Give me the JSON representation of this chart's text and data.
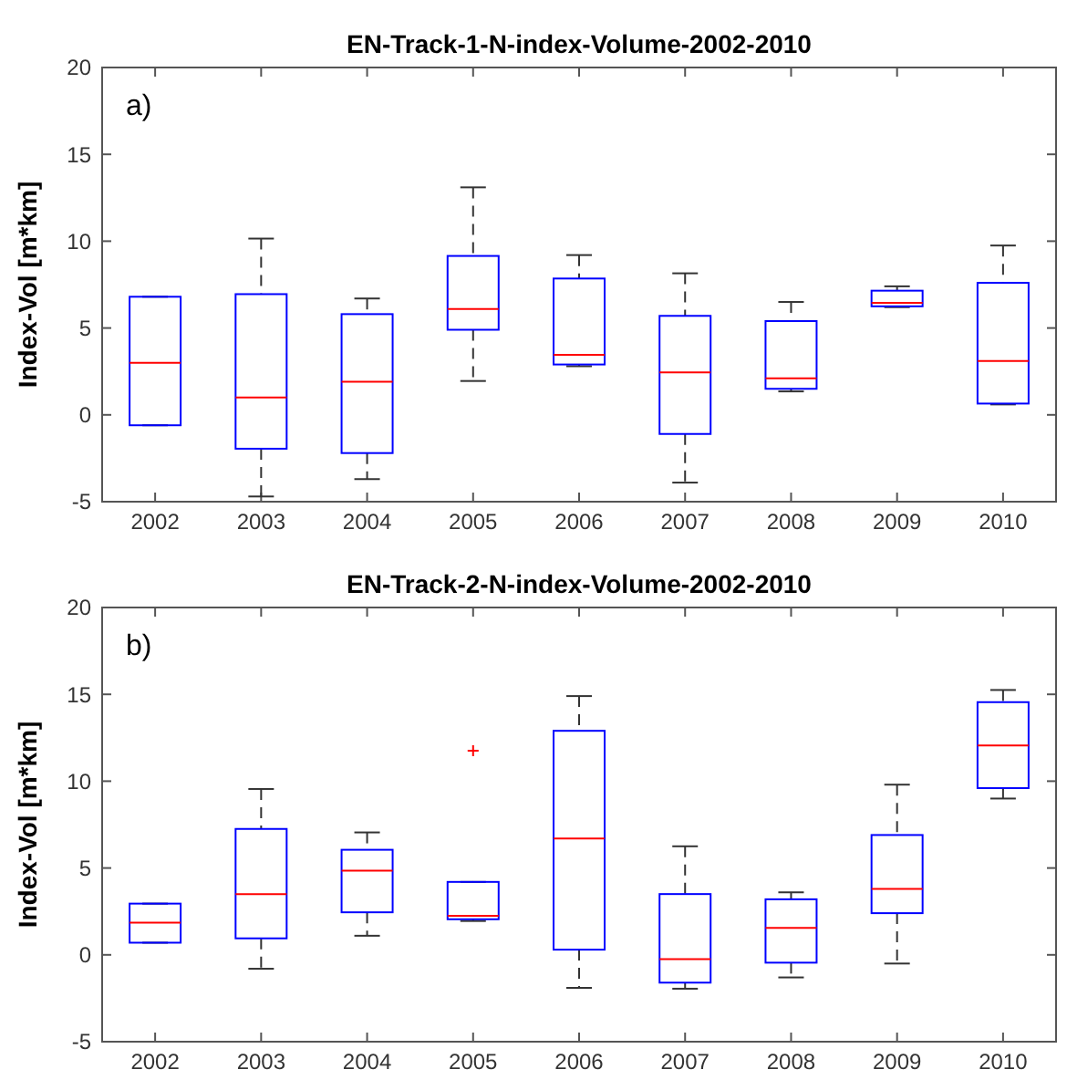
{
  "chart_data": [
    {
      "type": "box",
      "title": "EN-Track-1-N-index-Volume-2002-2010",
      "ylabel": "Index-Vol [m*km]",
      "annotations": [
        "a)"
      ],
      "categories": [
        "2002",
        "2003",
        "2004",
        "2005",
        "2006",
        "2007",
        "2008",
        "2009",
        "2010"
      ],
      "ylim": [
        -5,
        20
      ],
      "yticks": [
        -5,
        0,
        5,
        10,
        15,
        20
      ],
      "grid": false,
      "boxes": [
        {
          "low": -0.6,
          "q1": -0.6,
          "median": 3.0,
          "q3": 6.8,
          "high": 6.8
        },
        {
          "low": -4.7,
          "q1": -1.95,
          "median": 1.0,
          "q3": 6.95,
          "high": 10.15
        },
        {
          "low": -3.7,
          "q1": -2.2,
          "median": 1.9,
          "q3": 5.8,
          "high": 6.7
        },
        {
          "low": 1.95,
          "q1": 4.9,
          "median": 6.1,
          "q3": 9.15,
          "high": 13.1
        },
        {
          "low": 2.8,
          "q1": 2.9,
          "median": 3.45,
          "q3": 7.85,
          "high": 9.2
        },
        {
          "low": -3.9,
          "q1": -1.1,
          "median": 2.45,
          "q3": 5.7,
          "high": 8.15
        },
        {
          "low": 1.35,
          "q1": 1.5,
          "median": 2.1,
          "q3": 5.4,
          "high": 6.5
        },
        {
          "low": 6.2,
          "q1": 6.25,
          "median": 6.45,
          "q3": 7.15,
          "high": 7.4
        },
        {
          "low": 0.6,
          "q1": 0.65,
          "median": 3.1,
          "q3": 7.6,
          "high": 9.75
        }
      ]
    },
    {
      "type": "box",
      "title": "EN-Track-2-N-index-Volume-2002-2010",
      "ylabel": "Index-Vol [m*km]",
      "annotations": [
        "b)"
      ],
      "categories": [
        "2002",
        "2003",
        "2004",
        "2005",
        "2006",
        "2007",
        "2008",
        "2009",
        "2010"
      ],
      "ylim": [
        -5,
        20
      ],
      "yticks": [
        -5,
        0,
        5,
        10,
        15,
        20
      ],
      "grid": false,
      "boxes": [
        {
          "low": 0.7,
          "q1": 0.7,
          "median": 1.85,
          "q3": 2.95,
          "high": 2.95
        },
        {
          "low": -0.8,
          "q1": 0.95,
          "median": 3.5,
          "q3": 7.25,
          "high": 9.55
        },
        {
          "low": 1.1,
          "q1": 2.45,
          "median": 4.85,
          "q3": 6.05,
          "high": 7.05
        },
        {
          "low": 1.95,
          "q1": 2.05,
          "median": 2.25,
          "q3": 4.2,
          "high": 4.2,
          "outliers": [
            11.75
          ]
        },
        {
          "low": -1.9,
          "q1": 0.3,
          "median": 6.7,
          "q3": 12.9,
          "high": 14.9
        },
        {
          "low": -1.95,
          "q1": -1.6,
          "median": -0.25,
          "q3": 3.5,
          "high": 6.25
        },
        {
          "low": -1.3,
          "q1": -0.45,
          "median": 1.55,
          "q3": 3.2,
          "high": 3.6
        },
        {
          "low": -0.5,
          "q1": 2.4,
          "median": 3.8,
          "q3": 6.9,
          "high": 9.8
        },
        {
          "low": 9.0,
          "q1": 9.6,
          "median": 12.05,
          "q3": 14.55,
          "high": 15.25
        }
      ]
    }
  ]
}
